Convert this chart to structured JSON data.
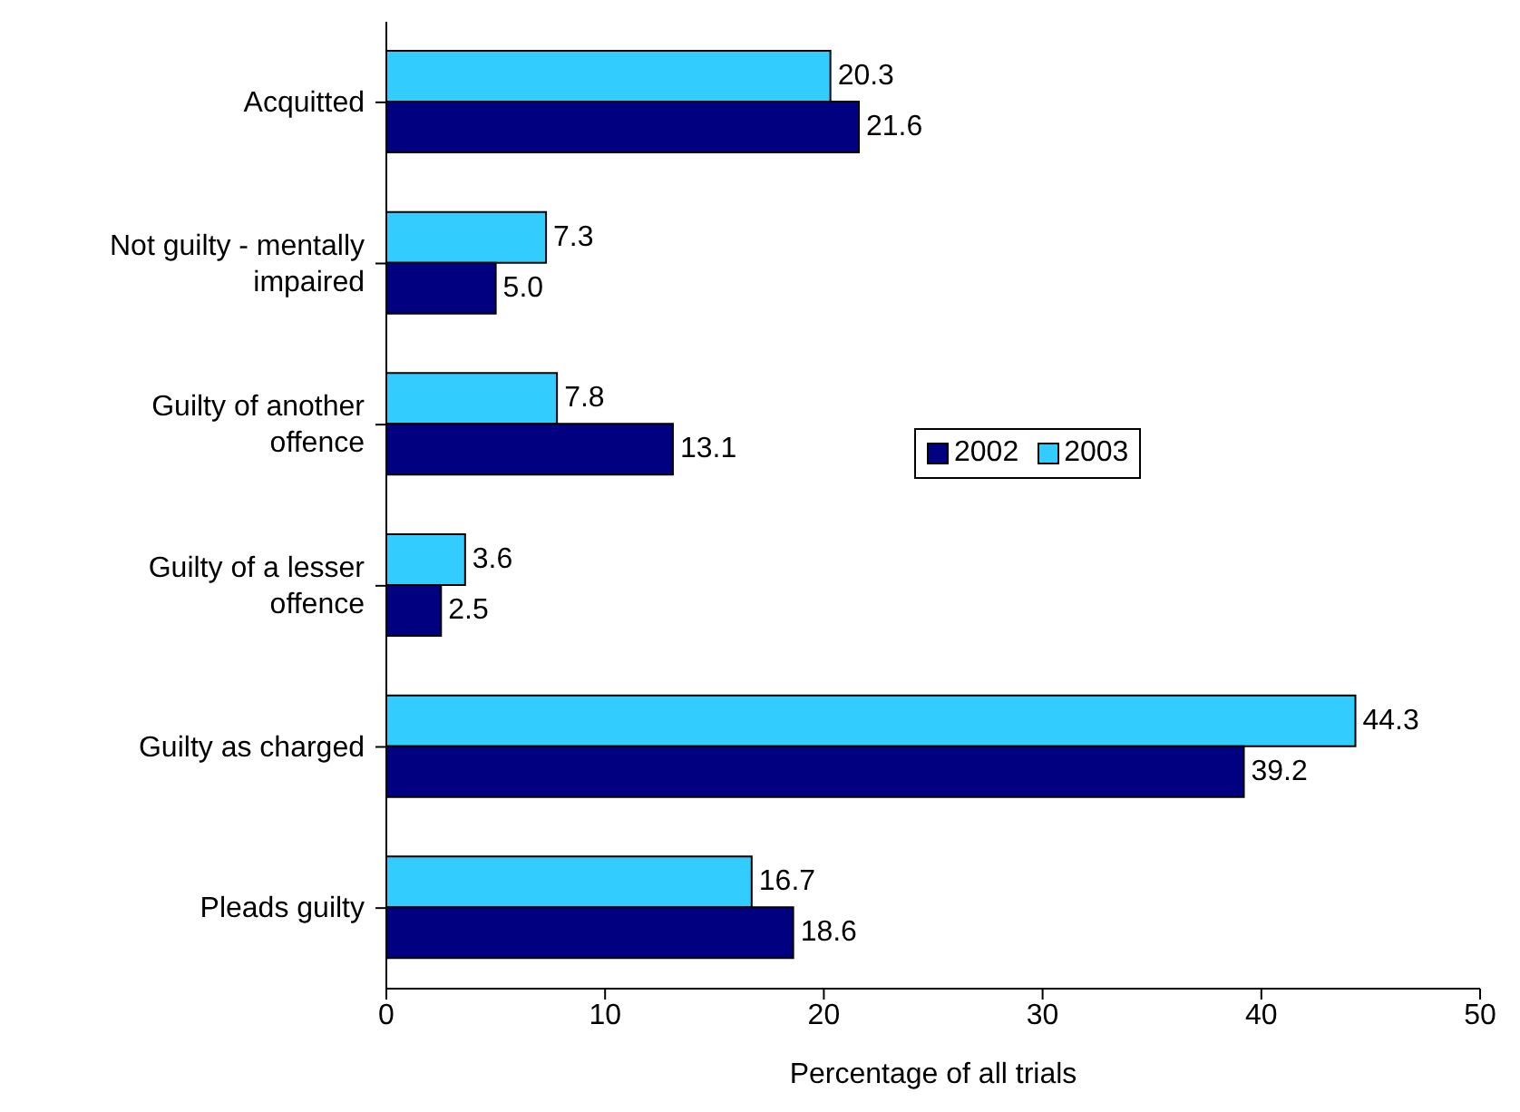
{
  "chart_data": {
    "type": "bar",
    "orientation": "horizontal",
    "xlabel": "Percentage of all trials",
    "categories": [
      "Acquitted",
      "Not guilty - mentally impaired",
      "Guilty of another offence",
      "Guilty of a lesser offence",
      "Guilty as charged",
      "Pleads guilty"
    ],
    "series": [
      {
        "name": "2002",
        "color": "#000080",
        "values": [
          21.6,
          5.0,
          13.1,
          2.5,
          39.2,
          18.6
        ],
        "value_labels": [
          "21.6",
          "5.0",
          "13.1",
          "2.5",
          "39.2",
          "18.6"
        ]
      },
      {
        "name": "2003",
        "color": "#33ccff",
        "values": [
          20.3,
          7.3,
          7.8,
          3.6,
          44.3,
          16.7
        ],
        "value_labels": [
          "20.3",
          "7.3",
          "7.8",
          "3.6",
          "44.3",
          "16.7"
        ]
      }
    ],
    "xlim": [
      0,
      50
    ],
    "xticks": [
      0,
      10,
      20,
      30,
      40,
      50
    ],
    "legend": "right"
  }
}
